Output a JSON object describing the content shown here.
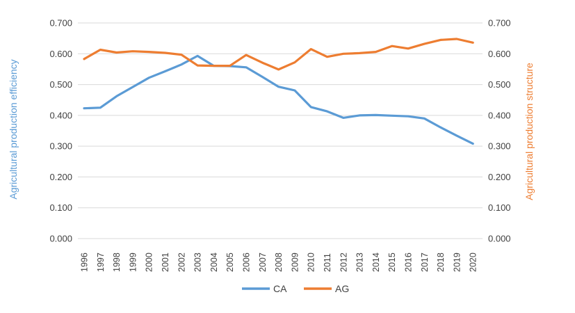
{
  "chart_data": {
    "type": "line",
    "categories": [
      1996,
      1997,
      1998,
      1999,
      2000,
      2001,
      2002,
      2003,
      2004,
      2005,
      2006,
      2007,
      2008,
      2009,
      2010,
      2011,
      2012,
      2013,
      2014,
      2015,
      2016,
      2017,
      2018,
      2019,
      2020
    ],
    "series": [
      {
        "name": "CA",
        "color": "#5B9BD5",
        "axis": "left",
        "values": [
          0.423,
          0.425,
          0.462,
          0.492,
          0.522,
          0.543,
          0.565,
          0.593,
          0.561,
          0.56,
          0.556,
          0.525,
          0.493,
          0.481,
          0.427,
          0.413,
          0.392,
          0.4,
          0.401,
          0.399,
          0.397,
          0.39,
          0.361,
          0.334,
          0.308
        ]
      },
      {
        "name": "AG",
        "color": "#ED7D31",
        "axis": "right",
        "values": [
          0.583,
          0.613,
          0.604,
          0.608,
          0.606,
          0.603,
          0.597,
          0.562,
          0.561,
          0.561,
          0.596,
          0.571,
          0.549,
          0.572,
          0.615,
          0.59,
          0.6,
          0.602,
          0.606,
          0.625,
          0.617,
          0.632,
          0.645,
          0.648,
          0.636
        ]
      }
    ],
    "left_axis": {
      "label": "Agricultural production efficiency",
      "color": "#5B9BD5",
      "min": 0.0,
      "max": 0.7,
      "step": 0.1,
      "tick_labels": [
        "0.000",
        "0.100",
        "0.200",
        "0.300",
        "0.400",
        "0.500",
        "0.600",
        "0.700"
      ]
    },
    "right_axis": {
      "label": "Agricultural production structure",
      "color": "#ED7D31",
      "min": 0.0,
      "max": 0.7,
      "step": 0.1,
      "tick_labels": [
        "0.000",
        "0.100",
        "0.200",
        "0.300",
        "0.400",
        "0.500",
        "0.600",
        "0.700"
      ]
    },
    "legend": {
      "position": "bottom",
      "entries": [
        "CA",
        "AG"
      ]
    },
    "gridlines": true,
    "gridline_color": "#D9D9D9",
    "background_color": "#FFFFFF"
  }
}
